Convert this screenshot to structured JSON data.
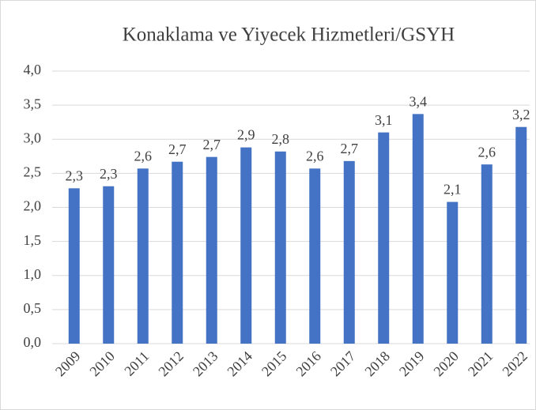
{
  "chart_data": {
    "type": "bar",
    "title": "Konaklama ve Yiyecek Hizmetleri/GSYH",
    "categories": [
      "2009",
      "2010",
      "2011",
      "2012",
      "2013",
      "2014",
      "2015",
      "2016",
      "2017",
      "2018",
      "2019",
      "2020",
      "2021",
      "2022"
    ],
    "values": [
      2.28,
      2.31,
      2.57,
      2.67,
      2.74,
      2.88,
      2.82,
      2.57,
      2.68,
      3.1,
      3.37,
      2.08,
      2.63,
      3.18
    ],
    "value_labels": [
      "2,3",
      "2,3",
      "2,6",
      "2,7",
      "2,7",
      "2,9",
      "2,8",
      "2,6",
      "2,7",
      "3,1",
      "3,4",
      "2,1",
      "2,6",
      "3,2"
    ],
    "color": "#4472c4",
    "ylim": [
      0,
      4
    ],
    "yticks": [
      {
        "value": 0,
        "label": "0,0"
      },
      {
        "value": 0.5,
        "label": "0,5"
      },
      {
        "value": 1,
        "label": "1,0"
      },
      {
        "value": 1.5,
        "label": "1,5"
      },
      {
        "value": 2,
        "label": "2,0"
      },
      {
        "value": 2.5,
        "label": "2,5"
      },
      {
        "value": 3,
        "label": "3,0"
      },
      {
        "value": 3.5,
        "label": "3,5"
      },
      {
        "value": 4,
        "label": "4,0"
      }
    ],
    "grid": true
  }
}
